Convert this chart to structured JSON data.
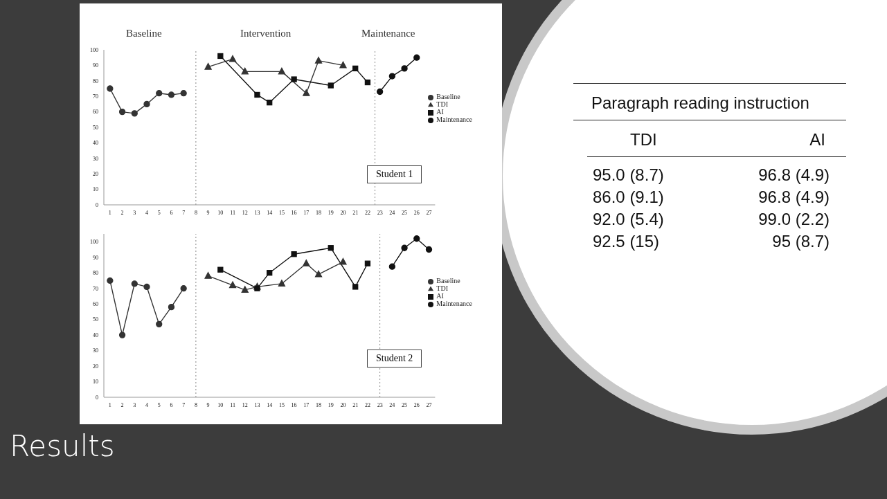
{
  "chart_data": [
    {
      "type": "line",
      "annotations": [
        "Baseline",
        "Intervention",
        "Maintenance",
        "Student 1"
      ],
      "xlim": [
        0.5,
        27.5
      ],
      "xticks": [
        1,
        2,
        3,
        4,
        5,
        6,
        7,
        8,
        9,
        10,
        11,
        12,
        13,
        14,
        15,
        16,
        17,
        18,
        19,
        20,
        21,
        22,
        23,
        24,
        25,
        26,
        27
      ],
      "ylim": [
        0,
        100
      ],
      "yticks": [
        0,
        10,
        20,
        30,
        40,
        50,
        60,
        70,
        80,
        90,
        100
      ],
      "grid": false,
      "legend": "right",
      "line_style": "solid",
      "ref_lines": [
        {
          "axis": "x",
          "value": 8,
          "line_style": "dotted",
          "color": "#888888"
        },
        {
          "axis": "x",
          "value": 22.6,
          "line_style": "dotted",
          "color": "#888888"
        }
      ],
      "series": [
        {
          "name": "Baseline",
          "color": "#333333",
          "marker": "circle",
          "x": [
            1,
            2,
            3,
            4,
            5,
            6,
            7
          ],
          "values": [
            75,
            60,
            59,
            65,
            72,
            71,
            72
          ]
        },
        {
          "name": "TDI",
          "color": "#333333",
          "marker": "triangle",
          "x": [
            9,
            11,
            12,
            15,
            17,
            18,
            20
          ],
          "values": [
            89,
            94,
            86,
            86,
            72,
            93,
            90
          ]
        },
        {
          "name": "AI",
          "color": "#111111",
          "marker": "square",
          "x": [
            10,
            13,
            14,
            16,
            19,
            21,
            22
          ],
          "values": [
            96,
            71,
            66,
            81,
            77,
            88,
            79
          ]
        },
        {
          "name": "Maintenance",
          "color": "#111111",
          "marker": "circle",
          "x": [
            23,
            24,
            25,
            26
          ],
          "values": [
            73,
            83,
            88,
            95
          ]
        }
      ]
    },
    {
      "type": "line",
      "annotations": [
        "Student 2"
      ],
      "xlim": [
        0.5,
        27.5
      ],
      "xticks": [
        1,
        2,
        3,
        4,
        5,
        6,
        7,
        8,
        9,
        10,
        11,
        12,
        13,
        14,
        15,
        16,
        17,
        18,
        19,
        20,
        21,
        22,
        23,
        24,
        25,
        26,
        27
      ],
      "ylim": [
        0,
        105
      ],
      "yticks": [
        0,
        10,
        20,
        30,
        40,
        50,
        60,
        70,
        80,
        90,
        100
      ],
      "grid": false,
      "legend": "right",
      "line_style": "solid",
      "ref_lines": [
        {
          "axis": "x",
          "value": 8,
          "line_style": "dotted",
          "color": "#888888"
        },
        {
          "axis": "x",
          "value": 23,
          "line_style": "dotted",
          "color": "#888888"
        }
      ],
      "series": [
        {
          "name": "Baseline",
          "color": "#333333",
          "marker": "circle",
          "x": [
            1,
            2,
            3,
            4,
            5,
            6,
            7
          ],
          "values": [
            75,
            40,
            73,
            71,
            47,
            58,
            70
          ]
        },
        {
          "name": "TDI",
          "color": "#333333",
          "marker": "triangle",
          "x": [
            9,
            11,
            12,
            13,
            15,
            17,
            18,
            20
          ],
          "values": [
            78,
            72,
            69,
            71,
            73,
            86,
            79,
            87
          ]
        },
        {
          "name": "AI",
          "color": "#111111",
          "marker": "square",
          "x": [
            10,
            13,
            14,
            16,
            19,
            21,
            22
          ],
          "values": [
            82,
            70,
            80,
            92,
            96,
            71,
            86
          ]
        },
        {
          "name": "Maintenance",
          "color": "#111111",
          "marker": "circle",
          "x": [
            24,
            25,
            26,
            27
          ],
          "values": [
            84,
            96,
            102,
            95
          ]
        }
      ]
    },
    {
      "type": "other",
      "title": "Paragraph reading instruction",
      "annotations": [
        "TDI",
        "AI",
        "95.0 (8.7)",
        "96.8 (4.9)",
        "86.0 (9.1)",
        "96.8 (4.9)",
        "92.0 (5.4)",
        "99.0 (2.2)",
        "92.5 (15)",
        "95 (8.7)"
      ]
    },
    {
      "type": "other",
      "title": "Results"
    }
  ]
}
